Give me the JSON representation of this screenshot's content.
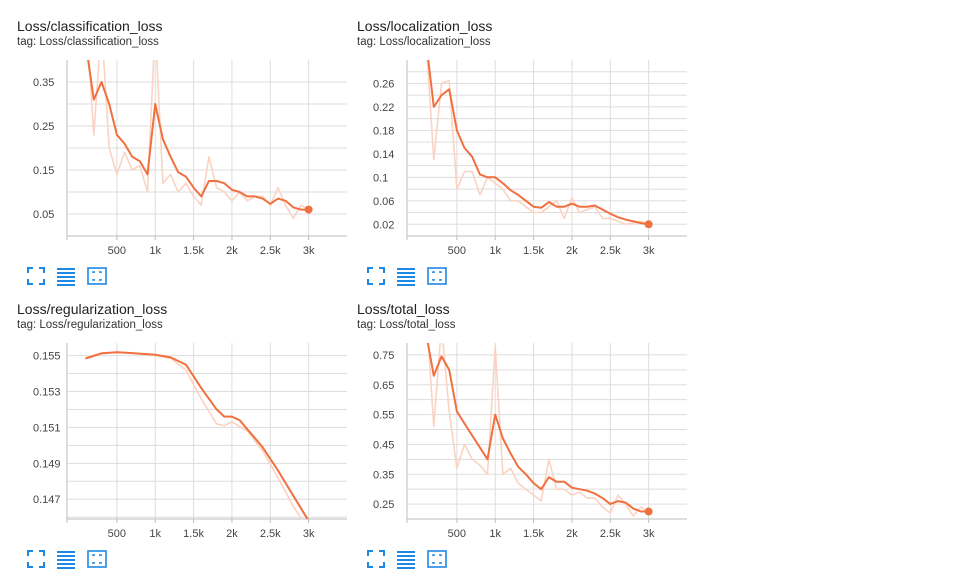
{
  "colors": {
    "line": "#f07040",
    "raw": "#fbd3c2",
    "grid": "#dddddd",
    "axis": "#bdbdbd",
    "icon": "#1e88e5"
  },
  "icons": [
    "fullscreen-icon",
    "toggle-data-icon",
    "fit-domain-icon"
  ],
  "cards": [
    {
      "title": "Loss/classification_loss",
      "tag": "tag: Loss/classification_loss",
      "chart_data": {
        "type": "line",
        "title": "Loss/classification_loss",
        "xlabel": "",
        "ylabel": "",
        "xlim": [
          -150,
          3500
        ],
        "ylim": [
          0.0,
          0.4
        ],
        "grid": true,
        "legend": "none",
        "xticks": [
          500,
          1000,
          1500,
          2000,
          2500,
          3000
        ],
        "xtick_labels": [
          "500",
          "1k",
          "1.5k",
          "2k",
          "2.5k",
          "3k"
        ],
        "yticks": [
          0.05,
          0.15,
          0.25,
          0.35
        ],
        "ytick_labels": [
          "0.05",
          "0.15",
          "0.25",
          "0.35"
        ],
        "series": [
          {
            "role": "raw",
            "x": [
              100,
              200,
              300,
              400,
              500,
              600,
              700,
              800,
              900,
              1000,
              1100,
              1200,
              1300,
              1400,
              1500,
              1600,
              1700,
              1800,
              1900,
              2000,
              2100,
              2200,
              2300,
              2400,
              2500,
              2600,
              2700,
              2800,
              2900,
              3000
            ],
            "y": [
              0.5,
              0.23,
              0.48,
              0.2,
              0.14,
              0.19,
              0.15,
              0.16,
              0.1,
              0.48,
              0.12,
              0.14,
              0.1,
              0.12,
              0.09,
              0.07,
              0.18,
              0.11,
              0.1,
              0.08,
              0.1,
              0.08,
              0.09,
              0.09,
              0.07,
              0.11,
              0.07,
              0.04,
              0.07,
              0.06
            ]
          },
          {
            "role": "smoothed",
            "marker": "end",
            "x": [
              100,
              200,
              300,
              400,
              500,
              600,
              700,
              800,
              900,
              1000,
              1100,
              1200,
              1300,
              1400,
              1500,
              1600,
              1700,
              1800,
              1900,
              2000,
              2100,
              2200,
              2300,
              2400,
              2500,
              2600,
              2700,
              2800,
              2900,
              3000
            ],
            "y": [
              0.43,
              0.31,
              0.35,
              0.3,
              0.23,
              0.21,
              0.18,
              0.17,
              0.14,
              0.3,
              0.22,
              0.18,
              0.145,
              0.135,
              0.11,
              0.09,
              0.125,
              0.125,
              0.12,
              0.105,
              0.1,
              0.09,
              0.09,
              0.085,
              0.073,
              0.085,
              0.08,
              0.065,
              0.06,
              0.06
            ]
          }
        ]
      }
    },
    {
      "title": "Loss/localization_loss",
      "tag": "tag: Loss/localization_loss",
      "chart_data": {
        "type": "line",
        "title": "Loss/localization_loss",
        "xlabel": "",
        "ylabel": "",
        "xlim": [
          -150,
          3500
        ],
        "ylim": [
          0.0,
          0.3
        ],
        "grid": true,
        "legend": "none",
        "xticks": [
          500,
          1000,
          1500,
          2000,
          2500,
          3000
        ],
        "xtick_labels": [
          "500",
          "1k",
          "1.5k",
          "2k",
          "2.5k",
          "3k"
        ],
        "yticks": [
          0.02,
          0.06,
          0.1,
          0.14,
          0.18,
          0.22,
          0.26
        ],
        "ytick_labels": [
          "0.02",
          "0.06",
          "0.1",
          "0.14",
          "0.18",
          "0.22",
          "0.26"
        ],
        "series": [
          {
            "role": "raw",
            "x": [
              100,
              200,
              300,
              400,
              500,
              600,
              700,
              800,
              900,
              1000,
              1100,
              1200,
              1300,
              1400,
              1500,
              1600,
              1700,
              1800,
              1900,
              2000,
              2100,
              2200,
              2300,
              2400,
              2500,
              2600,
              2700,
              2800,
              2900,
              3000
            ],
            "y": [
              0.33,
              0.13,
              0.26,
              0.265,
              0.08,
              0.11,
              0.11,
              0.07,
              0.1,
              0.09,
              0.08,
              0.06,
              0.06,
              0.05,
              0.04,
              0.04,
              0.05,
              0.06,
              0.03,
              0.065,
              0.04,
              0.045,
              0.05,
              0.03,
              0.03,
              0.025,
              0.02,
              0.022,
              0.025,
              0.02
            ]
          },
          {
            "role": "smoothed",
            "marker": "end",
            "x": [
              100,
              200,
              300,
              400,
              500,
              600,
              700,
              800,
              900,
              1000,
              1100,
              1200,
              1300,
              1400,
              1500,
              1600,
              1700,
              1800,
              1900,
              2000,
              2100,
              2200,
              2300,
              2400,
              2500,
              2600,
              2700,
              2800,
              2900,
              3000
            ],
            "y": [
              0.33,
              0.22,
              0.24,
              0.25,
              0.18,
              0.15,
              0.135,
              0.105,
              0.1,
              0.1,
              0.09,
              0.078,
              0.07,
              0.06,
              0.05,
              0.048,
              0.058,
              0.05,
              0.05,
              0.055,
              0.05,
              0.05,
              0.052,
              0.045,
              0.038,
              0.032,
              0.028,
              0.025,
              0.022,
              0.02
            ]
          }
        ]
      }
    },
    {
      "title": "Loss/regularization_loss",
      "tag": "tag: Loss/regularization_loss",
      "chart_data": {
        "type": "line",
        "title": "Loss/regularization_loss",
        "xlabel": "",
        "ylabel": "",
        "xlim": [
          -150,
          3500
        ],
        "ylim": [
          0.1459,
          0.1557
        ],
        "grid": true,
        "legend": "none",
        "xticks": [
          500,
          1000,
          1500,
          2000,
          2500,
          3000
        ],
        "xtick_labels": [
          "500",
          "1k",
          "1.5k",
          "2k",
          "2.5k",
          "3k"
        ],
        "yticks": [
          0.147,
          0.149,
          0.151,
          0.153,
          0.155
        ],
        "ytick_labels": [
          "0.147",
          "0.149",
          "0.151",
          "0.153",
          "0.155"
        ],
        "series": [
          {
            "role": "raw",
            "x": [
              100,
              300,
              500,
              700,
              1000,
              1200,
              1400,
              1600,
              1800,
              1900,
              2000,
              2200,
              2400,
              2600,
              2800,
              3000
            ],
            "y": [
              0.1549,
              0.15515,
              0.1552,
              0.15515,
              0.155,
              0.15485,
              0.1542,
              0.1526,
              0.1512,
              0.1511,
              0.1513,
              0.1508,
              0.1497,
              0.1482,
              0.1466,
              0.1453
            ]
          },
          {
            "role": "smoothed",
            "marker": "none",
            "x": [
              100,
              300,
              500,
              700,
              1000,
              1200,
              1400,
              1600,
              1800,
              1900,
              2000,
              2100,
              2200,
              2400,
              2600,
              2800,
              3000
            ],
            "y": [
              0.15485,
              0.15512,
              0.15518,
              0.15514,
              0.15505,
              0.1549,
              0.1545,
              0.1532,
              0.152,
              0.1516,
              0.1516,
              0.1514,
              0.1509,
              0.1499,
              0.1486,
              0.1472,
              0.1458
            ]
          }
        ]
      }
    },
    {
      "title": "Loss/total_loss",
      "tag": "tag: Loss/total_loss",
      "chart_data": {
        "type": "line",
        "title": "Loss/total_loss",
        "xlabel": "",
        "ylabel": "",
        "xlim": [
          -150,
          3500
        ],
        "ylim": [
          0.2,
          0.79
        ],
        "grid": true,
        "legend": "none",
        "xticks": [
          500,
          1000,
          1500,
          2000,
          2500,
          3000
        ],
        "xtick_labels": [
          "500",
          "1k",
          "1.5k",
          "2k",
          "2.5k",
          "3k"
        ],
        "yticks": [
          0.25,
          0.35,
          0.45,
          0.55,
          0.65,
          0.75
        ],
        "ytick_labels": [
          "0.25",
          "0.35",
          "0.45",
          "0.55",
          "0.65",
          "0.75"
        ],
        "series": [
          {
            "role": "raw",
            "x": [
              100,
              200,
              300,
              400,
              500,
              600,
              700,
              800,
              900,
              1000,
              1100,
              1200,
              1300,
              1400,
              1500,
              1600,
              1700,
              1800,
              1900,
              2000,
              2100,
              2200,
              2300,
              2400,
              2500,
              2600,
              2700,
              2800,
              2900,
              3000
            ],
            "y": [
              0.9,
              0.51,
              0.85,
              0.56,
              0.37,
              0.45,
              0.4,
              0.38,
              0.35,
              0.78,
              0.35,
              0.37,
              0.32,
              0.3,
              0.28,
              0.26,
              0.4,
              0.3,
              0.3,
              0.28,
              0.29,
              0.27,
              0.27,
              0.24,
              0.22,
              0.28,
              0.25,
              0.21,
              0.24,
              0.22
            ]
          },
          {
            "role": "smoothed",
            "marker": "end",
            "x": [
              100,
              200,
              300,
              400,
              500,
              600,
              700,
              800,
              900,
              1000,
              1100,
              1200,
              1300,
              1400,
              1500,
              1600,
              1700,
              1800,
              1900,
              2000,
              2100,
              2200,
              2300,
              2400,
              2500,
              2600,
              2700,
              2800,
              2900,
              3000
            ],
            "y": [
              0.82,
              0.68,
              0.745,
              0.7,
              0.56,
              0.52,
              0.48,
              0.44,
              0.4,
              0.55,
              0.47,
              0.42,
              0.375,
              0.35,
              0.32,
              0.3,
              0.34,
              0.325,
              0.325,
              0.305,
              0.3,
              0.295,
              0.285,
              0.27,
              0.25,
              0.26,
              0.255,
              0.235,
              0.225,
              0.225
            ]
          }
        ]
      }
    }
  ]
}
